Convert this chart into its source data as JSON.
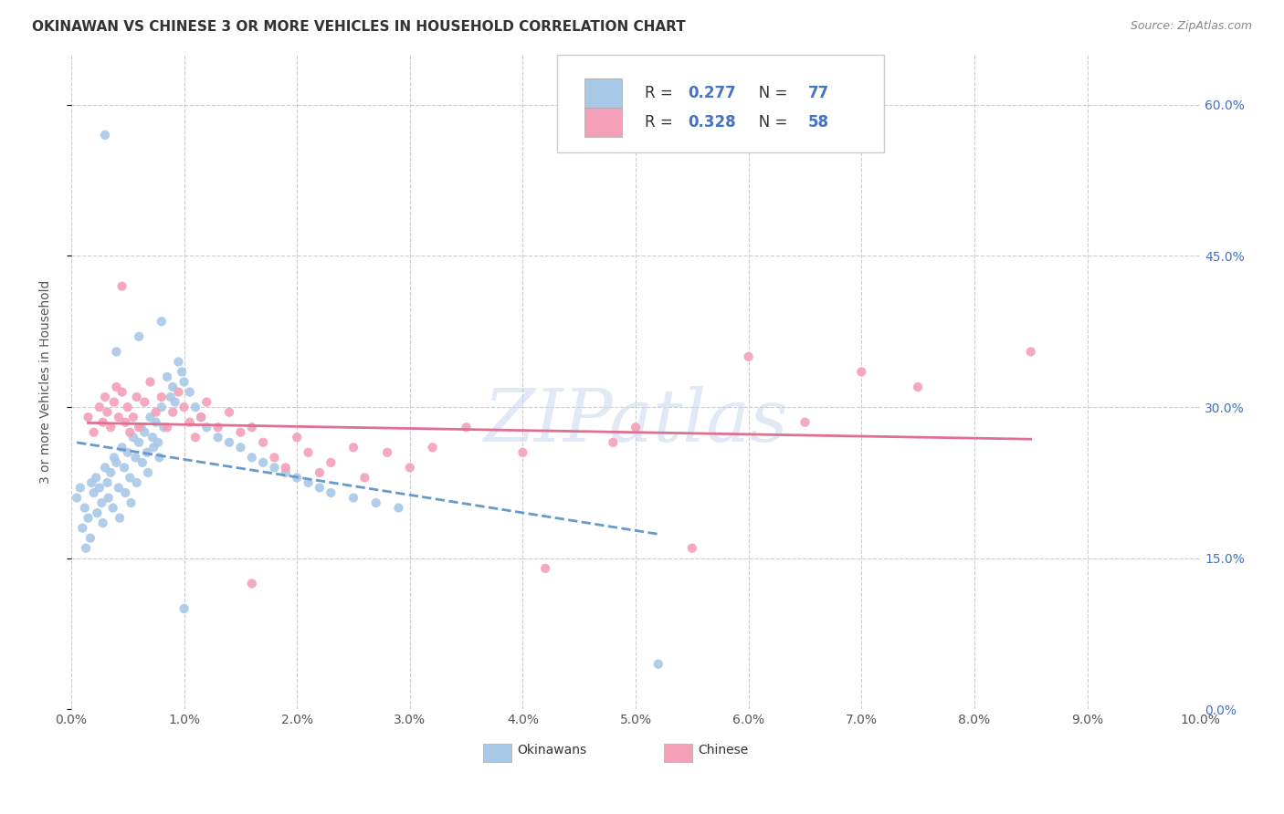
{
  "title": "OKINAWAN VS CHINESE 3 OR MORE VEHICLES IN HOUSEHOLD CORRELATION CHART",
  "source": "Source: ZipAtlas.com",
  "ylabel_label": "3 or more Vehicles in Household",
  "xlim": [
    0.0,
    10.0
  ],
  "ylim": [
    0.0,
    65.0
  ],
  "watermark": "ZIPatlas",
  "legend_okinawan_R": "0.277",
  "legend_okinawan_N": "77",
  "legend_chinese_R": "0.328",
  "legend_chinese_N": "58",
  "okinawan_color": "#a8c8e8",
  "chinese_color": "#f4a0b8",
  "okinawan_line_color": "#6699cc",
  "chinese_line_color": "#e07090",
  "grid_color": "#cccccc",
  "ok_x": [
    0.05,
    0.08,
    0.1,
    0.12,
    0.13,
    0.15,
    0.17,
    0.18,
    0.2,
    0.22,
    0.23,
    0.25,
    0.27,
    0.28,
    0.3,
    0.32,
    0.33,
    0.35,
    0.37,
    0.38,
    0.4,
    0.42,
    0.43,
    0.45,
    0.47,
    0.48,
    0.5,
    0.52,
    0.53,
    0.55,
    0.57,
    0.58,
    0.6,
    0.62,
    0.63,
    0.65,
    0.67,
    0.68,
    0.7,
    0.72,
    0.73,
    0.75,
    0.77,
    0.78,
    0.8,
    0.82,
    0.85,
    0.88,
    0.9,
    0.92,
    0.95,
    0.98,
    1.0,
    1.05,
    1.1,
    1.15,
    1.2,
    1.3,
    1.4,
    1.5,
    1.6,
    1.7,
    1.8,
    1.9,
    2.0,
    2.1,
    2.2,
    2.3,
    2.5,
    2.7,
    2.9,
    0.4,
    0.6,
    0.8,
    1.0,
    0.3,
    5.2
  ],
  "ok_y": [
    21.0,
    22.0,
    18.0,
    20.0,
    16.0,
    19.0,
    17.0,
    22.5,
    21.5,
    23.0,
    19.5,
    22.0,
    20.5,
    18.5,
    24.0,
    22.5,
    21.0,
    23.5,
    20.0,
    25.0,
    24.5,
    22.0,
    19.0,
    26.0,
    24.0,
    21.5,
    25.5,
    23.0,
    20.5,
    27.0,
    25.0,
    22.5,
    26.5,
    28.0,
    24.5,
    27.5,
    25.5,
    23.5,
    29.0,
    27.0,
    26.0,
    28.5,
    26.5,
    25.0,
    30.0,
    28.0,
    33.0,
    31.0,
    32.0,
    30.5,
    34.5,
    33.5,
    32.5,
    31.5,
    30.0,
    29.0,
    28.0,
    27.0,
    26.5,
    26.0,
    25.0,
    24.5,
    24.0,
    23.5,
    23.0,
    22.5,
    22.0,
    21.5,
    21.0,
    20.5,
    20.0,
    35.5,
    37.0,
    38.5,
    10.0,
    57.0,
    4.5
  ],
  "ch_x": [
    0.15,
    0.2,
    0.25,
    0.28,
    0.3,
    0.32,
    0.35,
    0.38,
    0.4,
    0.42,
    0.45,
    0.48,
    0.5,
    0.52,
    0.55,
    0.58,
    0.6,
    0.65,
    0.7,
    0.75,
    0.8,
    0.85,
    0.9,
    0.95,
    1.0,
    1.05,
    1.1,
    1.15,
    1.2,
    1.3,
    1.4,
    1.5,
    1.6,
    1.7,
    1.8,
    1.9,
    2.0,
    2.1,
    2.2,
    2.3,
    2.5,
    2.6,
    2.8,
    3.0,
    3.2,
    3.5,
    4.0,
    4.2,
    4.8,
    5.0,
    5.5,
    6.0,
    6.5,
    7.0,
    7.5,
    8.5,
    0.45,
    1.6
  ],
  "ch_y": [
    29.0,
    27.5,
    30.0,
    28.5,
    31.0,
    29.5,
    28.0,
    30.5,
    32.0,
    29.0,
    31.5,
    28.5,
    30.0,
    27.5,
    29.0,
    31.0,
    28.0,
    30.5,
    32.5,
    29.5,
    31.0,
    28.0,
    29.5,
    31.5,
    30.0,
    28.5,
    27.0,
    29.0,
    30.5,
    28.0,
    29.5,
    27.5,
    28.0,
    26.5,
    25.0,
    24.0,
    27.0,
    25.5,
    23.5,
    24.5,
    26.0,
    23.0,
    25.5,
    24.0,
    26.0,
    28.0,
    25.5,
    14.0,
    26.5,
    28.0,
    16.0,
    35.0,
    28.5,
    33.5,
    32.0,
    35.5,
    42.0,
    12.5
  ]
}
